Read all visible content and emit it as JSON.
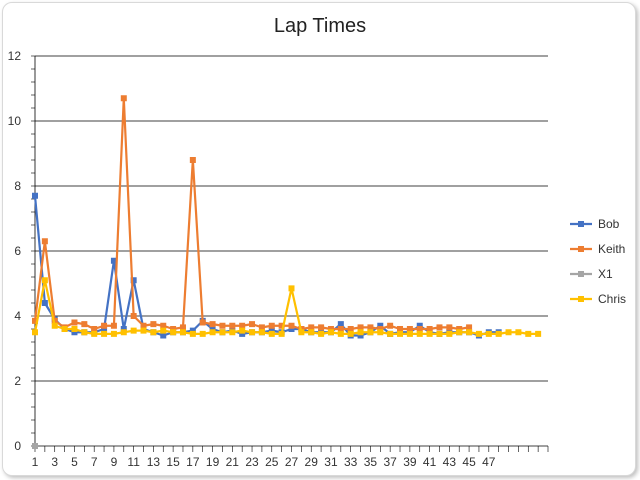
{
  "chart_data": {
    "type": "line",
    "title": "Lap Times",
    "xlabel": "",
    "ylabel": "",
    "ylim": [
      0,
      12
    ],
    "yticks": [
      0,
      2,
      4,
      6,
      8,
      10,
      12
    ],
    "xlim": [
      1,
      50
    ],
    "xtick_labels": [
      1,
      3,
      5,
      7,
      9,
      11,
      13,
      15,
      17,
      19,
      21,
      23,
      25,
      27,
      29,
      31,
      33,
      35,
      37,
      39,
      41,
      43,
      45,
      47
    ],
    "grid": "horizontal",
    "legend_position": "right",
    "series": [
      {
        "name": "Bob",
        "color": "#4472C4",
        "values": [
          7.7,
          4.4,
          3.9,
          3.6,
          3.5,
          3.5,
          3.5,
          3.6,
          5.7,
          3.6,
          5.1,
          3.6,
          3.5,
          3.4,
          3.5,
          3.5,
          3.55,
          3.85,
          3.6,
          3.5,
          3.55,
          3.45,
          3.5,
          3.5,
          3.55,
          3.5,
          3.6,
          3.6,
          3.5,
          3.5,
          3.5,
          3.75,
          3.4,
          3.4,
          3.5,
          3.7,
          3.45,
          3.5,
          3.5,
          3.7,
          3.5,
          3.45,
          3.5,
          3.5,
          3.5,
          3.4,
          3.5,
          3.5
        ]
      },
      {
        "name": "Keith",
        "color": "#ED7D31",
        "values": [
          3.85,
          6.3,
          3.85,
          3.65,
          3.8,
          3.75,
          3.6,
          3.7,
          3.7,
          10.7,
          4.0,
          3.7,
          3.75,
          3.7,
          3.6,
          3.65,
          8.8,
          3.8,
          3.75,
          3.7,
          3.7,
          3.7,
          3.75,
          3.65,
          3.7,
          3.7,
          3.7,
          3.6,
          3.65,
          3.65,
          3.6,
          3.6,
          3.6,
          3.65,
          3.65,
          3.6,
          3.7,
          3.6,
          3.6,
          3.6,
          3.6,
          3.65,
          3.65,
          3.6,
          3.65
        ]
      },
      {
        "name": "X1",
        "color": "#A5A5A5",
        "values": [
          0
        ]
      },
      {
        "name": "Chris",
        "color": "#FFC000",
        "values": [
          3.5,
          5.1,
          3.7,
          3.6,
          3.6,
          3.5,
          3.45,
          3.45,
          3.45,
          3.5,
          3.55,
          3.55,
          3.5,
          3.55,
          3.5,
          3.5,
          3.45,
          3.45,
          3.5,
          3.5,
          3.5,
          3.55,
          3.5,
          3.5,
          3.45,
          3.45,
          4.85,
          3.5,
          3.5,
          3.45,
          3.5,
          3.45,
          3.45,
          3.5,
          3.5,
          3.5,
          3.45,
          3.45,
          3.45,
          3.45,
          3.45,
          3.45,
          3.45,
          3.5,
          3.5,
          3.45,
          3.45,
          3.45,
          3.5,
          3.5,
          3.45,
          3.45
        ]
      }
    ]
  }
}
